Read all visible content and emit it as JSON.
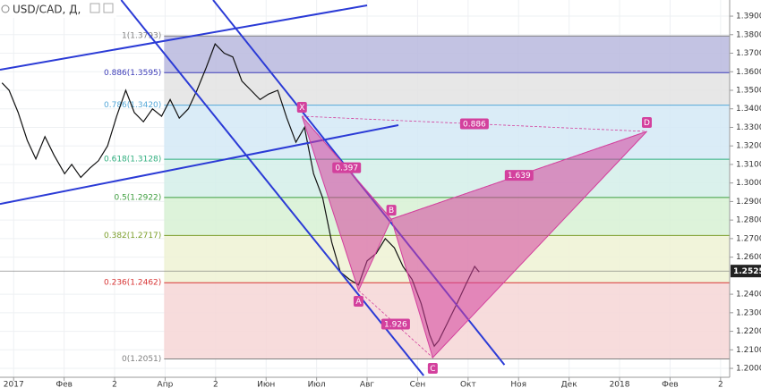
{
  "chart_data": {
    "type": "line",
    "symbol": "USD/CAD, Д,",
    "x": [
      -0.23,
      -0.09,
      0.09,
      0.27,
      0.44,
      0.62,
      0.8,
      1.01,
      1.15,
      1.33,
      1.51,
      1.68,
      1.86,
      2.04,
      2.22,
      2.39,
      2.57,
      2.75,
      2.93,
      3.1,
      3.28,
      3.46,
      3.63,
      3.81,
      3.99,
      4.17,
      4.34,
      4.52,
      4.7,
      4.88,
      5.05,
      5.23,
      5.41,
      5.59,
      5.76,
      5.94,
      6.12,
      6.3,
      6.47,
      6.65,
      6.83,
      7.0,
      7.18,
      7.36,
      7.54,
      7.71,
      7.89,
      8.07,
      8.24,
      8.33,
      8.42,
      8.6,
      8.78,
      8.95,
      9.13,
      9.22
    ],
    "series": [
      {
        "color": "#111111",
        "values": [
          1.354,
          1.35,
          1.338,
          1.323,
          1.313,
          1.325,
          1.315,
          1.305,
          1.31,
          1.303,
          1.308,
          1.312,
          1.32,
          1.336,
          1.35,
          1.338,
          1.333,
          1.34,
          1.336,
          1.345,
          1.335,
          1.34,
          1.35,
          1.362,
          1.375,
          1.37,
          1.368,
          1.355,
          1.35,
          1.345,
          1.348,
          1.35,
          1.335,
          1.322,
          1.33,
          1.305,
          1.292,
          1.268,
          1.252,
          1.248,
          1.245,
          1.258,
          1.262,
          1.27,
          1.265,
          1.255,
          1.248,
          1.235,
          1.218,
          1.212,
          1.215,
          1.225,
          1.235,
          1.245,
          1.255,
          1.252
        ]
      }
    ],
    "xlim": [
      -0.27,
      14.18
    ],
    "ylim": [
      1.1952,
      1.3987
    ],
    "xticks": [
      {
        "value": 0,
        "label": "2017"
      },
      {
        "value": 1,
        "label": "Фев"
      },
      {
        "value": 2,
        "label": "2"
      },
      {
        "value": 3,
        "label": "Апр"
      },
      {
        "value": 4,
        "label": "2"
      },
      {
        "value": 5,
        "label": "Июн"
      },
      {
        "value": 6,
        "label": "Июл"
      },
      {
        "value": 7,
        "label": "Авг"
      },
      {
        "value": 8,
        "label": "Сен"
      },
      {
        "value": 9,
        "label": "Окт"
      },
      {
        "value": 10,
        "label": "Ноя"
      },
      {
        "value": 11,
        "label": "Дек"
      },
      {
        "value": 12,
        "label": "2018"
      },
      {
        "value": 13,
        "label": "Фев"
      },
      {
        "value": 14,
        "label": "2"
      }
    ],
    "yticks": [
      {
        "value": 1.39,
        "label": "1.3900"
      },
      {
        "value": 1.38,
        "label": "1.3800"
      },
      {
        "value": 1.37,
        "label": "1.3700"
      },
      {
        "value": 1.36,
        "label": "1.3600"
      },
      {
        "value": 1.35,
        "label": "1.3500"
      },
      {
        "value": 1.34,
        "label": "1.3400"
      },
      {
        "value": 1.33,
        "label": "1.3300"
      },
      {
        "value": 1.32,
        "label": "1.3200"
      },
      {
        "value": 1.31,
        "label": "1.3100"
      },
      {
        "value": 1.3,
        "label": "1.3000"
      },
      {
        "value": 1.29,
        "label": "1.2900"
      },
      {
        "value": 1.28,
        "label": "1.2800"
      },
      {
        "value": 1.27,
        "label": "1.2700"
      },
      {
        "value": 1.26,
        "label": "1.2600"
      },
      {
        "value": 1.24,
        "label": "1.2400"
      },
      {
        "value": 1.23,
        "label": "1.2300"
      },
      {
        "value": 1.22,
        "label": "1.2200"
      },
      {
        "value": 1.21,
        "label": "1.2100"
      },
      {
        "value": 1.2,
        "label": "1.2000"
      }
    ],
    "grid": true,
    "last_price": {
      "value": 1.2525,
      "label": "1.2525"
    },
    "fib": {
      "x_start": 2.98,
      "levels": [
        {
          "value": 1.3793,
          "label": "1(1.3793)",
          "color": "#808080"
        },
        {
          "value": 1.3595,
          "label": "0.886(1.3595)",
          "color": "#3d3db8"
        },
        {
          "value": 1.342,
          "label": "0.786(1.3420)",
          "color": "#55a8d8"
        },
        {
          "value": 1.3128,
          "label": "0.618(1.3128)",
          "color": "#2fae7e"
        },
        {
          "value": 1.2922,
          "label": "0.5(1.2922)",
          "color": "#3f9e3f"
        },
        {
          "value": 1.2717,
          "label": "0.382(1.2717)",
          "color": "#7a9e2a"
        },
        {
          "value": 1.2462,
          "label": "0.236(1.2462)",
          "color": "#d83434"
        },
        {
          "value": 1.2051,
          "label": "0(1.2051)",
          "color": "#808080"
        }
      ],
      "band_colors": [
        "#b9b9de",
        "#e3e3e3",
        "#d4e9f6",
        "#d3efe9",
        "#d7f1d3",
        "#eff2d3",
        "#f6d6d6"
      ]
    },
    "trendlines": {
      "color": "#2b3bd6",
      "lines": [
        {
          "x": [
            -0.27,
            7.0
          ],
          "y": [
            1.3611,
            1.3958
          ]
        },
        {
          "x": [
            -0.27,
            7.62
          ],
          "y": [
            1.2887,
            1.3312
          ]
        },
        {
          "x": [
            2.13,
            8.12
          ],
          "y": [
            1.3987,
            1.1961
          ]
        },
        {
          "x": [
            3.95,
            9.72
          ],
          "y": [
            1.3987,
            1.2019
          ]
        }
      ]
    },
    "pattern": {
      "color": "#d3409d",
      "points": [
        {
          "label": "X",
          "x": 5.71,
          "y": 1.336
        },
        {
          "label": "A",
          "x": 6.83,
          "y": 1.242
        },
        {
          "label": "B",
          "x": 7.48,
          "y": 1.2805
        },
        {
          "label": "C",
          "x": 8.3,
          "y": 1.2058
        },
        {
          "label": "D",
          "x": 12.54,
          "y": 1.3278
        }
      ],
      "legs": [
        {
          "points": [
            0,
            2
          ],
          "ratio": 0.397
        },
        {
          "points": [
            1,
            3
          ],
          "ratio": 1.926
        },
        {
          "points": [
            2,
            4
          ],
          "ratio": 1.639
        },
        {
          "points": [
            0,
            4
          ],
          "ratio": 0.886
        }
      ]
    }
  }
}
